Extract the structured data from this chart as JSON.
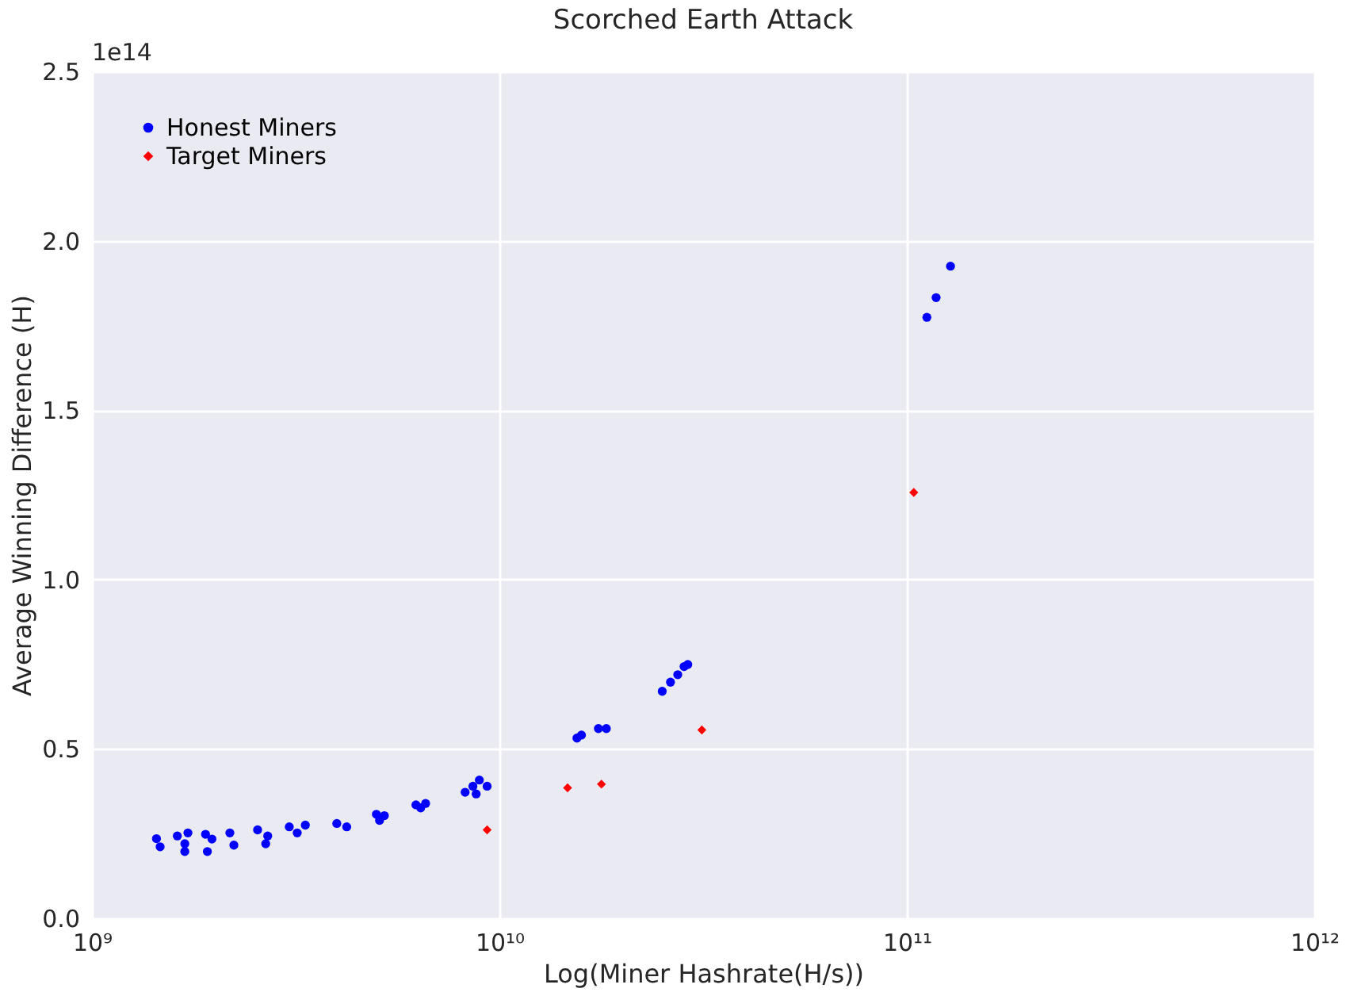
{
  "chart_data": {
    "type": "scatter",
    "title": "Scorched Earth Attack",
    "xlabel": "Log(Miner Hashrate(H/s))",
    "ylabel": "Average Winning Difference (H)",
    "annotations": [
      "1e14"
    ],
    "log": "x",
    "grid": true,
    "legend": "top left",
    "xlim": [
      1000000000.0,
      1000000000000.0
    ],
    "xticks": [
      {
        "value": 1000000000.0,
        "label": "10⁹"
      },
      {
        "value": 10000000000.0,
        "label": "10¹⁰"
      },
      {
        "value": 100000000000.0,
        "label": "10¹¹"
      },
      {
        "value": 1000000000000.0,
        "label": "10¹²"
      }
    ],
    "ylim": [
      0,
      2.5
    ],
    "yticks": [
      {
        "value": 0,
        "label": "0.0"
      },
      {
        "value": 0.5,
        "label": "0.5"
      },
      {
        "value": 1,
        "label": "1.0"
      },
      {
        "value": 1.5,
        "label": "1.5"
      },
      {
        "value": 2,
        "label": "2.0"
      },
      {
        "value": 2.5,
        "label": "2.5"
      }
    ],
    "series": [
      {
        "name": "Honest Miners",
        "color": "#0000ff",
        "marker": "circle",
        "x": [
          1440000000.0,
          1470000000.0,
          1620000000.0,
          1690000000.0,
          1720000000.0,
          1690000000.0,
          1900000000.0,
          1920000000.0,
          1970000000.0,
          2180000000.0,
          2230000000.0,
          2550000000.0,
          2670000000.0,
          2700000000.0,
          3050000000.0,
          3190000000.0,
          3340000000.0,
          3990000000.0,
          4220000000.0,
          4990000000.0,
          5080000000.0,
          5220000000.0,
          6240000000.0,
          6590000000.0,
          6410000000.0,
          8240000000.0,
          8610000000.0,
          8930000000.0,
          8770000000.0,
          9330000000.0,
          15500000000.0,
          15900000000.0,
          17500000000.0,
          18300000000.0,
          25100000000.0,
          26300000000.0,
          27400000000.0,
          28400000000.0,
          29000000000.0,
          128000000000.0,
          118000000000.0,
          112000000000.0
        ],
        "values": [
          0.235,
          0.211,
          0.243,
          0.197,
          0.252,
          0.22,
          0.248,
          0.197,
          0.234,
          0.252,
          0.216,
          0.261,
          0.22,
          0.243,
          0.27,
          0.252,
          0.275,
          0.28,
          0.27,
          0.307,
          0.289,
          0.303,
          0.335,
          0.339,
          0.326,
          0.372,
          0.39,
          0.408,
          0.367,
          0.39,
          0.532,
          0.541,
          0.56,
          0.56,
          0.67,
          0.697,
          0.719,
          0.743,
          0.749,
          1.925,
          1.832,
          1.774
        ]
      },
      {
        "name": "Target Miners",
        "color": "#ff0000",
        "marker": "diamond",
        "x": [
          9330000000.0,
          14700000000.0,
          17800000000.0,
          31400000000.0,
          104000000000.0
        ],
        "values": [
          0.261,
          0.385,
          0.396,
          0.556,
          1.257
        ]
      }
    ]
  }
}
